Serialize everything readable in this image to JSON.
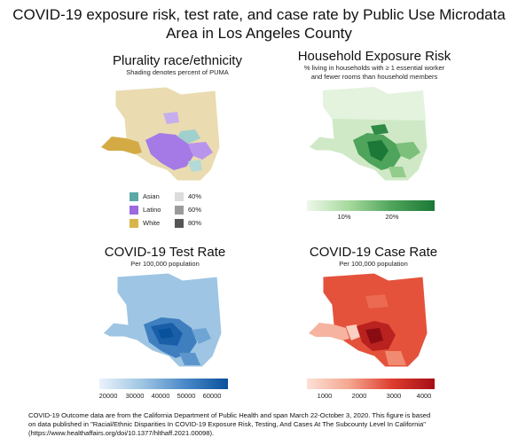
{
  "title_line1": "COVID-19 exposure risk, test rate, and case rate by Public Use Microdata",
  "title_line2": "Area in Los Angeles County",
  "panels": {
    "race": {
      "title": "Plurality race/ethnicity",
      "subtitle": "Shading denotes percent of PUMA",
      "legend_groups": [
        {
          "label": "Asian",
          "color": "#5aa9a6"
        },
        {
          "label": "Latino",
          "color": "#9b6ae0"
        },
        {
          "label": "White",
          "color": "#d8b54a"
        }
      ],
      "legend_shading": [
        {
          "label": "40%",
          "color": "#dcdcdc"
        },
        {
          "label": "60%",
          "color": "#9a9a9a"
        },
        {
          "label": "80%",
          "color": "#555555"
        }
      ],
      "colors": {
        "base": "#eadbb0",
        "white_dark": "#d4aa45",
        "latino": "#a57ae6",
        "asian": "#9fd0cd"
      }
    },
    "exposure": {
      "title": "Household Exposure Risk",
      "subtitle_line1": "% living in households with ≥ 1 essential worker",
      "subtitle_line2": "and fewer rooms than household members",
      "colorbar_ticks": [
        "10%",
        "20%"
      ],
      "colors": {
        "low": "#edf8e9",
        "high": "#1b7837",
        "base": "#cfe9c6"
      }
    },
    "test": {
      "title": "COVID-19 Test Rate",
      "subtitle": "Per 100,000 population",
      "colorbar_ticks": [
        "20000",
        "30000",
        "40000",
        "50000",
        "60000"
      ],
      "colors": {
        "low": "#eaf2fb",
        "high": "#08519c",
        "base": "#9ec5e3"
      }
    },
    "case": {
      "title": "COVID-19 Case Rate",
      "subtitle": "Per 100,000 population",
      "colorbar_ticks": [
        "1000",
        "2000",
        "3000",
        "4000"
      ],
      "colors": {
        "low": "#fde0d6",
        "high": "#a50f15",
        "base": "#e4523b"
      }
    }
  },
  "footnote_line1": "COVID-19 Outcome data are from the California Department of Public Health and span March 22-October 3, 2020. This figure is based",
  "footnote_line2": "on data published in \"Racial/Ethnic Disparities In COVID-19 Exposure Risk, Testing, And Cases At The Subcounty Level In California\"",
  "footnote_line3": "(https://www.healthaffairs.org/doi/10.1377/hlthaff.2021.00098)."
}
